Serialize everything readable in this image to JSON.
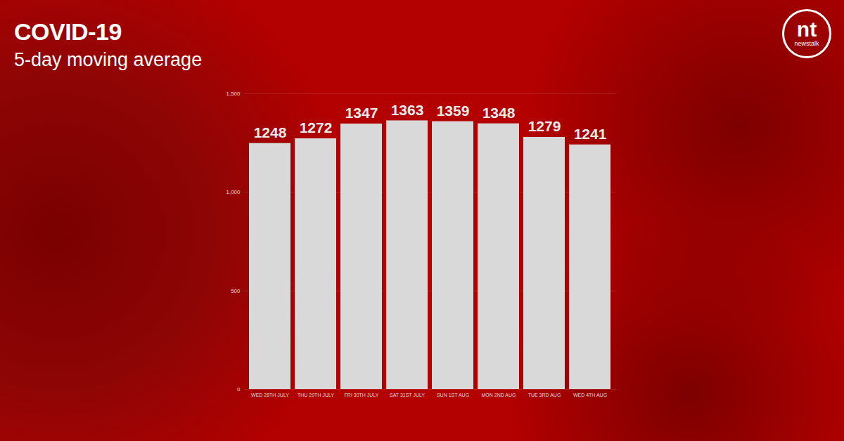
{
  "chart_data": {
    "type": "bar",
    "title": "COVID-19",
    "subtitle": "5-day moving average",
    "logo_text": "nt",
    "logo_subtext": "newstalk",
    "categories": [
      "WED 28TH JULY",
      "THU 29TH JULY",
      "FRI 30TH JULY",
      "SAT 31ST JULY",
      "SUN 1ST AUG",
      "MON 2ND AUG",
      "TUE 3RD AUG",
      "WED 4TH AUG"
    ],
    "values": [
      1248,
      1272,
      1347,
      1363,
      1359,
      1348,
      1279,
      1241
    ],
    "color": "#d9d9d9",
    "ylim": [
      0,
      1500
    ],
    "yticks": [
      0,
      500,
      {
        "value": 1000,
        "label": "1,000"
      },
      {
        "value": 1500,
        "label": "1,500"
      }
    ],
    "grid": true,
    "data_labels": true
  }
}
